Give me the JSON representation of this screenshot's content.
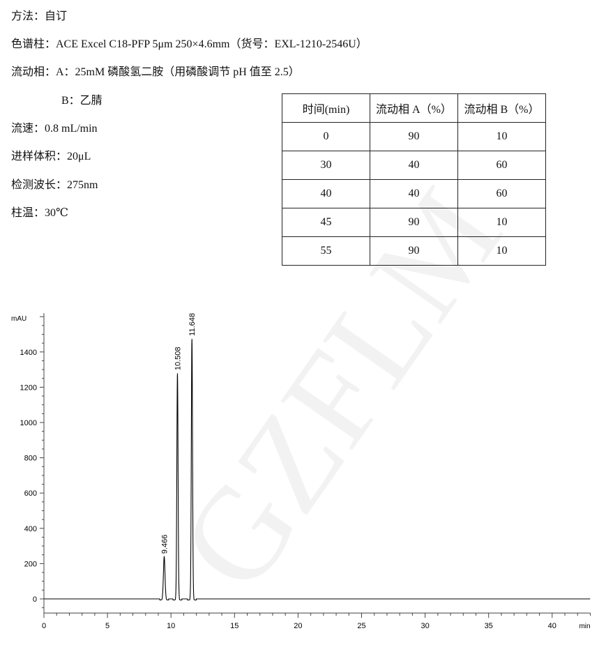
{
  "method": {
    "method_line": "方法：自订",
    "column_line": "色谱柱：ACE Excel C18-PFP 5μm 250×4.6mm（货号：EXL-1210-2546U）",
    "mobile_a_line": "流动相：A：25mM 磷酸氢二胺（用磷酸调节 pH 值至 2.5）",
    "mobile_b_line": "B：乙腈",
    "flow_line": "流速：0.8 mL/min",
    "injection_line": "进样体积：20μL",
    "wavelength_line": "检测波长：275nm",
    "temp_line": "柱温：30℃"
  },
  "gradient_table": {
    "headers": [
      "时间(min)",
      "流动相 A（%）",
      "流动相 B（%）"
    ],
    "rows": [
      [
        "0",
        "90",
        "10"
      ],
      [
        "30",
        "40",
        "60"
      ],
      [
        "40",
        "40",
        "60"
      ],
      [
        "45",
        "90",
        "10"
      ],
      [
        "55",
        "90",
        "10"
      ]
    ]
  },
  "watermark": "GZFLM",
  "chart_data": {
    "type": "line",
    "ylabel": "mAU",
    "xlabel": "min",
    "xlim": [
      0,
      43
    ],
    "ylim": [
      -80,
      1620
    ],
    "xticks": [
      0,
      5,
      10,
      15,
      20,
      25,
      30,
      35,
      40
    ],
    "yticks": [
      0,
      200,
      400,
      600,
      800,
      1000,
      1200,
      1400
    ],
    "grid": false,
    "line_color": "#000000",
    "peaks": [
      {
        "rt": 9.466,
        "label": "9.466",
        "height": 240,
        "width": 0.09
      },
      {
        "rt": 10.508,
        "label": "10.508",
        "height": 1280,
        "width": 0.07
      },
      {
        "rt": 11.648,
        "label": "11.648",
        "height": 1475,
        "width": 0.07
      }
    ]
  }
}
